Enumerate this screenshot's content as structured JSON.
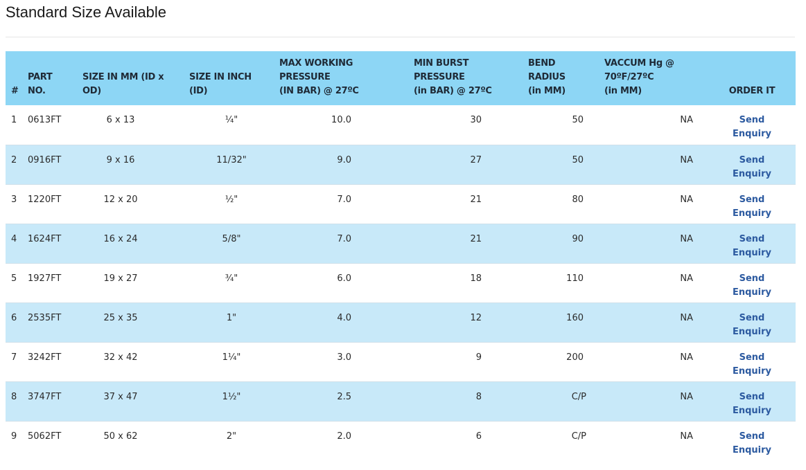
{
  "page": {
    "title": "Standard Size Available"
  },
  "table": {
    "headers": {
      "num": "#",
      "part": [
        "PART",
        "NO."
      ],
      "size_mm": [
        "SIZE IN MM (ID x",
        "OD)"
      ],
      "size_inch": [
        "SIZE IN INCH",
        "(ID)"
      ],
      "max_pressure": [
        "MAX WORKING",
        "PRESSURE",
        "(IN BAR) @ 27ºC"
      ],
      "burst_pressure": [
        "MIN BURST",
        "PRESSURE",
        "(in BAR) @ 27ºC"
      ],
      "bend_radius": [
        "BEND",
        "RADIUS",
        "(in MM)"
      ],
      "vaccum": [
        "VACCUM Hg @",
        "70ºF/27ºC",
        "(in MM)"
      ],
      "order": "ORDER IT"
    },
    "rows": [
      {
        "num": "1",
        "part": "0613FT",
        "size_mm": "6 x 13",
        "size_inch": "¼\"",
        "max_pressure": "10.0",
        "burst": "30",
        "bend": "50",
        "vaccum": "NA",
        "order": [
          "Send",
          "Enquiry"
        ]
      },
      {
        "num": "2",
        "part": "0916FT",
        "size_mm": "9 x 16",
        "size_inch": "11/32\"",
        "max_pressure": "9.0",
        "burst": "27",
        "bend": "50",
        "vaccum": "NA",
        "order": [
          "Send",
          "Enquiry"
        ]
      },
      {
        "num": "3",
        "part": "1220FT",
        "size_mm": "12 x 20",
        "size_inch": "½\"",
        "max_pressure": "7.0",
        "burst": "21",
        "bend": "80",
        "vaccum": "NA",
        "order": [
          "Send",
          "Enquiry"
        ]
      },
      {
        "num": "4",
        "part": "1624FT",
        "size_mm": "16 x 24",
        "size_inch": "5/8\"",
        "max_pressure": "7.0",
        "burst": "21",
        "bend": "90",
        "vaccum": "NA",
        "order": [
          "Send",
          "Enquiry"
        ]
      },
      {
        "num": "5",
        "part": "1927FT",
        "size_mm": "19 x 27",
        "size_inch": "¾\"",
        "max_pressure": "6.0",
        "burst": "18",
        "bend": "110",
        "vaccum": "NA",
        "order": [
          "Send",
          "Enquiry"
        ]
      },
      {
        "num": "6",
        "part": "2535FT",
        "size_mm": "25 x 35",
        "size_inch": "1\"",
        "max_pressure": "4.0",
        "burst": "12",
        "bend": "160",
        "vaccum": "NA",
        "order": [
          "Send",
          "Enquiry"
        ]
      },
      {
        "num": "7",
        "part": "3242FT",
        "size_mm": "32 x 42",
        "size_inch": "1¼\"",
        "max_pressure": "3.0",
        "burst": "9",
        "bend": "200",
        "vaccum": "NA",
        "order": [
          "Send",
          "Enquiry"
        ]
      },
      {
        "num": "8",
        "part": "3747FT",
        "size_mm": "37 x 47",
        "size_inch": "1½\"",
        "max_pressure": "2.5",
        "burst": "8",
        "bend": "C/P",
        "vaccum": "NA",
        "order": [
          "Send",
          "Enquiry"
        ]
      },
      {
        "num": "9",
        "part": "5062FT",
        "size_mm": "50 x 62",
        "size_inch": "2\"",
        "max_pressure": "2.0",
        "burst": "6",
        "bend": "C/P",
        "vaccum": "NA",
        "order": [
          "Send",
          "Enquiry"
        ]
      }
    ]
  },
  "colors": {
    "header_bg": "#8dd6f5",
    "stripe_bg": "#c8e9f9",
    "link": "#2c5aa0"
  }
}
